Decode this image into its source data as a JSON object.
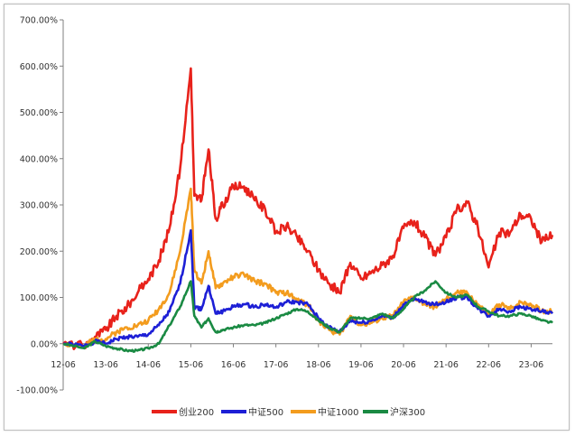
{
  "chart_data": {
    "type": "line",
    "title": "",
    "xlabel": "",
    "ylabel": "",
    "y_unit": "%",
    "ylim": [
      -100,
      700
    ],
    "yticks": [
      -100,
      0,
      100,
      200,
      300,
      400,
      500,
      600,
      700
    ],
    "ytick_labels": [
      "-100.00%",
      "0.00%",
      "100.00%",
      "200.00%",
      "300.00%",
      "400.00%",
      "500.00%",
      "600.00%",
      "700.00%"
    ],
    "xlim": [
      "2012-06",
      "2023-12"
    ],
    "xtick_labels": [
      "12-06",
      "13-06",
      "14-06",
      "15-06",
      "16-06",
      "17-06",
      "18-06",
      "19-06",
      "20-06",
      "21-06",
      "22-06",
      "23-06"
    ],
    "grid": false,
    "legend_position": "bottom",
    "series": [
      {
        "name": "创业200",
        "color": "#e8221b",
        "points": [
          [
            "2012-06",
            0
          ],
          [
            "2012-12",
            -5
          ],
          [
            "2013-03",
            15
          ],
          [
            "2013-06",
            30
          ],
          [
            "2013-09",
            60
          ],
          [
            "2013-12",
            80
          ],
          [
            "2014-03",
            110
          ],
          [
            "2014-06",
            140
          ],
          [
            "2014-09",
            180
          ],
          [
            "2014-12",
            250
          ],
          [
            "2015-03",
            380
          ],
          [
            "2015-06",
            595
          ],
          [
            "2015-07",
            320
          ],
          [
            "2015-09",
            310
          ],
          [
            "2015-11",
            420
          ],
          [
            "2016-01",
            270
          ],
          [
            "2016-03",
            300
          ],
          [
            "2016-06",
            340
          ],
          [
            "2016-09",
            340
          ],
          [
            "2016-12",
            310
          ],
          [
            "2017-03",
            290
          ],
          [
            "2017-06",
            240
          ],
          [
            "2017-09",
            255
          ],
          [
            "2017-12",
            230
          ],
          [
            "2018-03",
            200
          ],
          [
            "2018-06",
            160
          ],
          [
            "2018-09",
            130
          ],
          [
            "2018-12",
            110
          ],
          [
            "2019-03",
            175
          ],
          [
            "2019-06",
            140
          ],
          [
            "2019-09",
            155
          ],
          [
            "2019-12",
            170
          ],
          [
            "2020-03",
            190
          ],
          [
            "2020-06",
            250
          ],
          [
            "2020-09",
            265
          ],
          [
            "2020-12",
            230
          ],
          [
            "2021-03",
            190
          ],
          [
            "2021-06",
            230
          ],
          [
            "2021-09",
            290
          ],
          [
            "2021-12",
            305
          ],
          [
            "2022-03",
            250
          ],
          [
            "2022-06",
            165
          ],
          [
            "2022-09",
            240
          ],
          [
            "2022-12",
            240
          ],
          [
            "2023-03",
            280
          ],
          [
            "2023-06",
            270
          ],
          [
            "2023-09",
            220
          ],
          [
            "2023-12",
            235
          ]
        ]
      },
      {
        "name": "中证500",
        "color": "#1d1fd6",
        "points": [
          [
            "2012-06",
            0
          ],
          [
            "2012-12",
            -5
          ],
          [
            "2013-03",
            5
          ],
          [
            "2013-06",
            0
          ],
          [
            "2013-09",
            10
          ],
          [
            "2013-12",
            15
          ],
          [
            "2014-03",
            15
          ],
          [
            "2014-06",
            20
          ],
          [
            "2014-09",
            40
          ],
          [
            "2014-12",
            70
          ],
          [
            "2015-03",
            130
          ],
          [
            "2015-06",
            245
          ],
          [
            "2015-07",
            80
          ],
          [
            "2015-09",
            75
          ],
          [
            "2015-11",
            125
          ],
          [
            "2016-01",
            65
          ],
          [
            "2016-03",
            70
          ],
          [
            "2016-06",
            80
          ],
          [
            "2016-09",
            85
          ],
          [
            "2016-12",
            80
          ],
          [
            "2017-03",
            85
          ],
          [
            "2017-06",
            78
          ],
          [
            "2017-09",
            90
          ],
          [
            "2017-12",
            90
          ],
          [
            "2018-03",
            85
          ],
          [
            "2018-06",
            55
          ],
          [
            "2018-09",
            35
          ],
          [
            "2018-12",
            25
          ],
          [
            "2019-03",
            50
          ],
          [
            "2019-06",
            45
          ],
          [
            "2019-09",
            50
          ],
          [
            "2019-12",
            60
          ],
          [
            "2020-03",
            55
          ],
          [
            "2020-06",
            85
          ],
          [
            "2020-09",
            95
          ],
          [
            "2020-12",
            90
          ],
          [
            "2021-03",
            85
          ],
          [
            "2021-06",
            90
          ],
          [
            "2021-09",
            100
          ],
          [
            "2021-12",
            100
          ],
          [
            "2022-03",
            75
          ],
          [
            "2022-06",
            60
          ],
          [
            "2022-09",
            75
          ],
          [
            "2022-12",
            70
          ],
          [
            "2023-03",
            80
          ],
          [
            "2023-06",
            75
          ],
          [
            "2023-09",
            70
          ],
          [
            "2023-12",
            65
          ]
        ]
      },
      {
        "name": "中证1000",
        "color": "#f39c1e",
        "points": [
          [
            "2012-06",
            0
          ],
          [
            "2012-12",
            -5
          ],
          [
            "2013-03",
            10
          ],
          [
            "2013-06",
            10
          ],
          [
            "2013-09",
            25
          ],
          [
            "2013-12",
            35
          ],
          [
            "2014-03",
            40
          ],
          [
            "2014-06",
            50
          ],
          [
            "2014-09",
            75
          ],
          [
            "2014-12",
            110
          ],
          [
            "2015-03",
            200
          ],
          [
            "2015-06",
            335
          ],
          [
            "2015-07",
            160
          ],
          [
            "2015-09",
            130
          ],
          [
            "2015-11",
            200
          ],
          [
            "2016-01",
            120
          ],
          [
            "2016-03",
            130
          ],
          [
            "2016-06",
            145
          ],
          [
            "2016-09",
            150
          ],
          [
            "2016-12",
            135
          ],
          [
            "2017-03",
            130
          ],
          [
            "2017-06",
            110
          ],
          [
            "2017-09",
            110
          ],
          [
            "2017-12",
            95
          ],
          [
            "2018-03",
            85
          ],
          [
            "2018-06",
            50
          ],
          [
            "2018-09",
            30
          ],
          [
            "2018-12",
            20
          ],
          [
            "2019-03",
            60
          ],
          [
            "2019-06",
            40
          ],
          [
            "2019-09",
            45
          ],
          [
            "2019-12",
            55
          ],
          [
            "2020-03",
            60
          ],
          [
            "2020-06",
            90
          ],
          [
            "2020-09",
            100
          ],
          [
            "2020-12",
            85
          ],
          [
            "2021-03",
            80
          ],
          [
            "2021-06",
            95
          ],
          [
            "2021-09",
            110
          ],
          [
            "2021-12",
            110
          ],
          [
            "2022-03",
            85
          ],
          [
            "2022-06",
            60
          ],
          [
            "2022-09",
            85
          ],
          [
            "2022-12",
            75
          ],
          [
            "2023-03",
            90
          ],
          [
            "2023-06",
            85
          ],
          [
            "2023-09",
            70
          ],
          [
            "2023-12",
            70
          ]
        ]
      },
      {
        "name": "沪深300",
        "color": "#1a8a43",
        "points": [
          [
            "2012-06",
            0
          ],
          [
            "2012-12",
            -10
          ],
          [
            "2013-03",
            5
          ],
          [
            "2013-06",
            -5
          ],
          [
            "2013-09",
            -10
          ],
          [
            "2013-12",
            -15
          ],
          [
            "2014-03",
            -15
          ],
          [
            "2014-06",
            -10
          ],
          [
            "2014-09",
            0
          ],
          [
            "2014-12",
            40
          ],
          [
            "2015-03",
            80
          ],
          [
            "2015-06",
            135
          ],
          [
            "2015-07",
            60
          ],
          [
            "2015-09",
            35
          ],
          [
            "2015-11",
            55
          ],
          [
            "2016-01",
            25
          ],
          [
            "2016-03",
            30
          ],
          [
            "2016-06",
            35
          ],
          [
            "2016-09",
            40
          ],
          [
            "2016-12",
            40
          ],
          [
            "2017-03",
            45
          ],
          [
            "2017-06",
            55
          ],
          [
            "2017-09",
            65
          ],
          [
            "2017-12",
            75
          ],
          [
            "2018-03",
            70
          ],
          [
            "2018-06",
            50
          ],
          [
            "2018-09",
            35
          ],
          [
            "2018-12",
            25
          ],
          [
            "2019-03",
            55
          ],
          [
            "2019-06",
            55
          ],
          [
            "2019-09",
            55
          ],
          [
            "2019-12",
            65
          ],
          [
            "2020-03",
            55
          ],
          [
            "2020-06",
            75
          ],
          [
            "2020-09",
            100
          ],
          [
            "2020-12",
            115
          ],
          [
            "2021-03",
            135
          ],
          [
            "2021-06",
            110
          ],
          [
            "2021-09",
            100
          ],
          [
            "2021-12",
            105
          ],
          [
            "2022-03",
            80
          ],
          [
            "2022-06",
            70
          ],
          [
            "2022-09",
            60
          ],
          [
            "2022-12",
            60
          ],
          [
            "2023-03",
            65
          ],
          [
            "2023-06",
            60
          ],
          [
            "2023-09",
            50
          ],
          [
            "2023-12",
            45
          ]
        ]
      }
    ]
  }
}
